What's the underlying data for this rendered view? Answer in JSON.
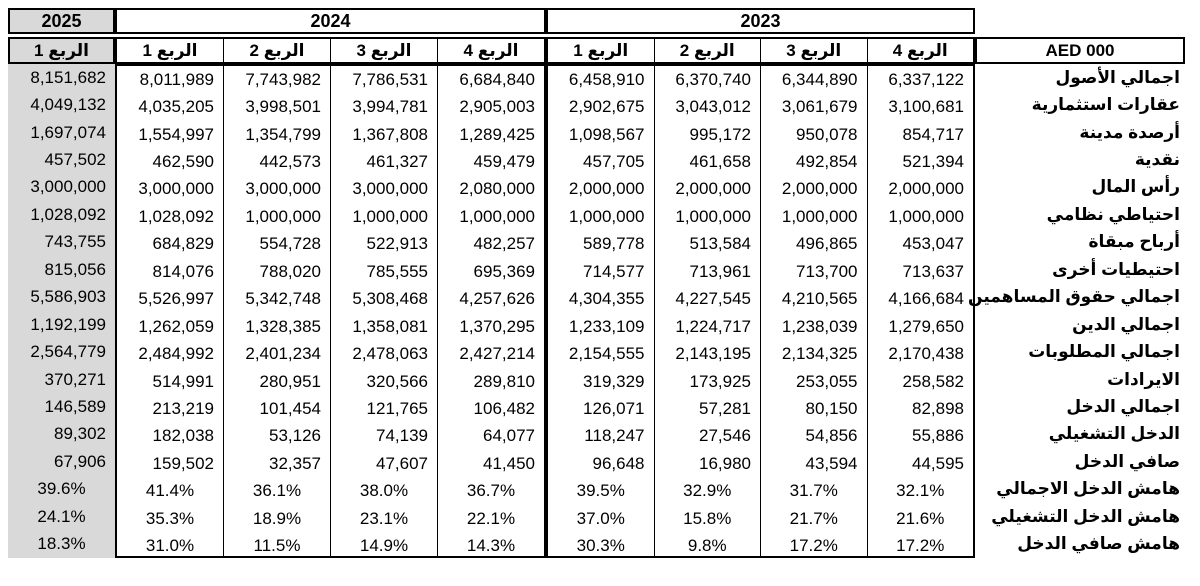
{
  "chart_data": {
    "type": "table",
    "title": "",
    "unit_header": "AED 000",
    "year_groups": [
      {
        "year": "2025",
        "quarters": [
          "الربع 1"
        ],
        "highlighted": true
      },
      {
        "year": "2024",
        "quarters": [
          "الربع 4",
          "الربع 3",
          "الربع 2",
          "الربع 1"
        ],
        "highlighted": false
      },
      {
        "year": "2023",
        "quarters": [
          "الربع 4",
          "الربع 3",
          "الربع 2",
          "الربع 1"
        ],
        "highlighted": false
      }
    ],
    "column_order_note": "values are left-to-right: 2025Q1, 2024Q4, 2024Q3, 2024Q2, 2024Q1, 2023Q4, 2023Q3, 2023Q2, 2023Q1",
    "rows": [
      {
        "label": "اجمالي الأصول",
        "values": [
          "8,151,682",
          "8,011,989",
          "7,743,982",
          "7,786,531",
          "6,684,840",
          "6,458,910",
          "6,370,740",
          "6,344,890",
          "6,337,122"
        ]
      },
      {
        "label": "عقارات استثمارية",
        "values": [
          "4,049,132",
          "4,035,205",
          "3,998,501",
          "3,994,781",
          "2,905,003",
          "2,902,675",
          "3,043,012",
          "3,061,679",
          "3,100,681"
        ]
      },
      {
        "label": "أرصدة مدينة",
        "values": [
          "1,697,074",
          "1,554,997",
          "1,354,799",
          "1,367,808",
          "1,289,425",
          "1,098,567",
          "995,172",
          "950,078",
          "854,717"
        ]
      },
      {
        "label": "نقدية",
        "values": [
          "457,502",
          "462,590",
          "442,573",
          "461,327",
          "459,479",
          "457,705",
          "461,658",
          "492,854",
          "521,394"
        ]
      },
      {
        "label": "رأس المال",
        "values": [
          "3,000,000",
          "3,000,000",
          "3,000,000",
          "3,000,000",
          "2,080,000",
          "2,000,000",
          "2,000,000",
          "2,000,000",
          "2,000,000"
        ]
      },
      {
        "label": "احتياطي نظامي",
        "values": [
          "1,028,092",
          "1,028,092",
          "1,000,000",
          "1,000,000",
          "1,000,000",
          "1,000,000",
          "1,000,000",
          "1,000,000",
          "1,000,000"
        ]
      },
      {
        "label": "أرباح مبقاة",
        "values": [
          "743,755",
          "684,829",
          "554,728",
          "522,913",
          "482,257",
          "589,778",
          "513,584",
          "496,865",
          "453,047"
        ]
      },
      {
        "label": "احتيطيات أخرى",
        "values": [
          "815,056",
          "814,076",
          "788,020",
          "785,555",
          "695,369",
          "714,577",
          "713,961",
          "713,700",
          "713,637"
        ]
      },
      {
        "label": "اجمالي حقوق المساهمين",
        "values": [
          "5,586,903",
          "5,526,997",
          "5,342,748",
          "5,308,468",
          "4,257,626",
          "4,304,355",
          "4,227,545",
          "4,210,565",
          "4,166,684"
        ]
      },
      {
        "label": "اجمالي الدين",
        "values": [
          "1,192,199",
          "1,262,059",
          "1,328,385",
          "1,358,081",
          "1,370,295",
          "1,233,109",
          "1,224,717",
          "1,238,039",
          "1,279,650"
        ]
      },
      {
        "label": "اجمالي المطلوبات",
        "values": [
          "2,564,779",
          "2,484,992",
          "2,401,234",
          "2,478,063",
          "2,427,214",
          "2,154,555",
          "2,143,195",
          "2,134,325",
          "2,170,438"
        ]
      },
      {
        "label": "الايرادات",
        "values": [
          "370,271",
          "514,991",
          "280,951",
          "320,566",
          "289,810",
          "319,329",
          "173,925",
          "253,055",
          "258,582"
        ]
      },
      {
        "label": "اجمالي الدخل",
        "values": [
          "146,589",
          "213,219",
          "101,454",
          "121,765",
          "106,482",
          "126,071",
          "57,281",
          "80,150",
          "82,898"
        ]
      },
      {
        "label": "الدخل التشغيلي",
        "values": [
          "89,302",
          "182,038",
          "53,126",
          "74,139",
          "64,077",
          "118,247",
          "27,546",
          "54,856",
          "55,886"
        ]
      },
      {
        "label": "صافي الدخل",
        "values": [
          "67,906",
          "159,502",
          "32,357",
          "47,607",
          "41,450",
          "96,648",
          "16,980",
          "43,594",
          "44,595"
        ]
      },
      {
        "label": "هامش الدخل الاجمالي",
        "values": [
          "39.6%",
          "41.4%",
          "36.1%",
          "38.0%",
          "36.7%",
          "39.5%",
          "32.9%",
          "31.7%",
          "32.1%"
        ]
      },
      {
        "label": "هامش الدخل التشغيلي",
        "values": [
          "24.1%",
          "35.3%",
          "18.9%",
          "23.1%",
          "22.1%",
          "37.0%",
          "15.8%",
          "21.7%",
          "21.6%"
        ]
      },
      {
        "label": "هامش صافي الدخل",
        "values": [
          "18.3%",
          "31.0%",
          "11.5%",
          "14.9%",
          "14.3%",
          "30.3%",
          "9.8%",
          "17.2%",
          "17.2%"
        ]
      }
    ]
  },
  "colors": {
    "highlight_column_bg": "#d9d9d9",
    "border": "#000000",
    "page_bg": "#ffffff",
    "text": "#000000"
  }
}
